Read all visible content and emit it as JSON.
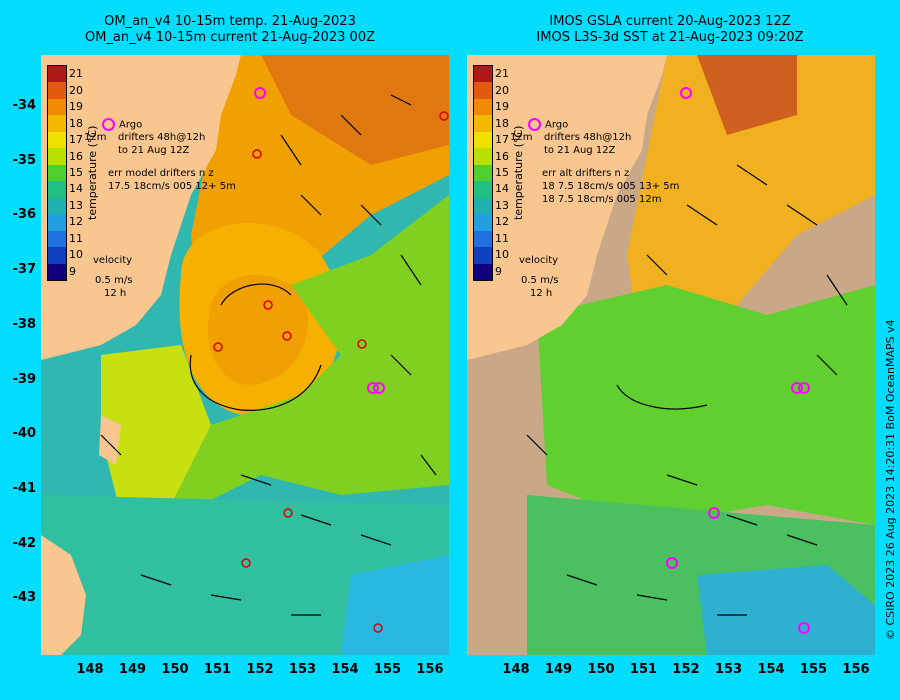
{
  "left_panel": {
    "title_line1": "OM_an_v4  10-15m temp. 21-Aug-2023",
    "title_line2": "OM_an_v4  10-15m current 21-Aug-2023 00Z",
    "legend": {
      "argo": "Argo",
      "drifters_prefix": "12m",
      "drifters_line1": "drifters 48h@12h",
      "drifters_line2": "to 21 Aug 12Z",
      "err_line1": "err model drifters n z",
      "err_line2": "17.5 18cm/s 005 12+ 5m",
      "velocity_label": "velocity",
      "velocity_scale": "0.5 m/s",
      "velocity_time": "12 h"
    }
  },
  "right_panel": {
    "title_line1": "IMOS GSLA current 20-Aug-2023 12Z",
    "title_line2": "IMOS L3S-3d SST at 21-Aug-2023 09:20Z",
    "legend": {
      "argo": "Argo",
      "drifters_prefix": "12m",
      "drifters_line1": "drifters 48h@12h",
      "drifters_line2": "to 21 Aug 12Z",
      "err_line1": "err alt drifters n z",
      "err_line2": "18 7.5 18cm/s 005 13+ 5m",
      "err_line3": "18 7.5 18cm/s 005 12m",
      "velocity_label": "velocity",
      "velocity_scale": "0.5 m/s",
      "velocity_time": "12 h"
    }
  },
  "colorbar": {
    "unit": "temperature (°C)",
    "ticks": [
      "21",
      "20",
      "19",
      "18",
      "17",
      "16",
      "15",
      "14",
      "13",
      "12",
      "11",
      "10",
      "9"
    ],
    "colors": [
      "#b01818",
      "#e05a10",
      "#f08a00",
      "#f5b800",
      "#f0e000",
      "#b8e000",
      "#50d030",
      "#20c080",
      "#20b0b0",
      "#20a0e0",
      "#2070e0",
      "#1040c0",
      "#100080"
    ]
  },
  "axes": {
    "lat_labels": [
      "-34",
      "-35",
      "-36",
      "-37",
      "-38",
      "-39",
      "-40",
      "-41",
      "-42",
      "-43"
    ],
    "lon_labels": [
      "148",
      "149",
      "150",
      "151",
      "152",
      "153",
      "154",
      "155",
      "156"
    ]
  },
  "credit": "© CSIRO 2023   26 Aug 2023 14:20:31 BoM OceanMAPS v4",
  "argo_floats_lonlat": [
    [
      152.2,
      -33.7
    ],
    [
      154.7,
      -39.1
    ],
    [
      154.9,
      -39.1
    ]
  ],
  "drifters_lonlat": [
    [
      152.1,
      -34.9
    ],
    [
      152.4,
      -37.6
    ],
    [
      151.2,
      -38.4
    ],
    [
      152.8,
      -38.2
    ],
    [
      154.5,
      -38.3
    ],
    [
      152.8,
      -41.4
    ],
    [
      151.8,
      -42.4
    ],
    [
      155.0,
      -43.5
    ],
    [
      156.3,
      -34.2
    ]
  ],
  "map_colors": {
    "land": "#f9c690",
    "missing": "#c9a888",
    "sea_bg": "#2fb8b4"
  }
}
